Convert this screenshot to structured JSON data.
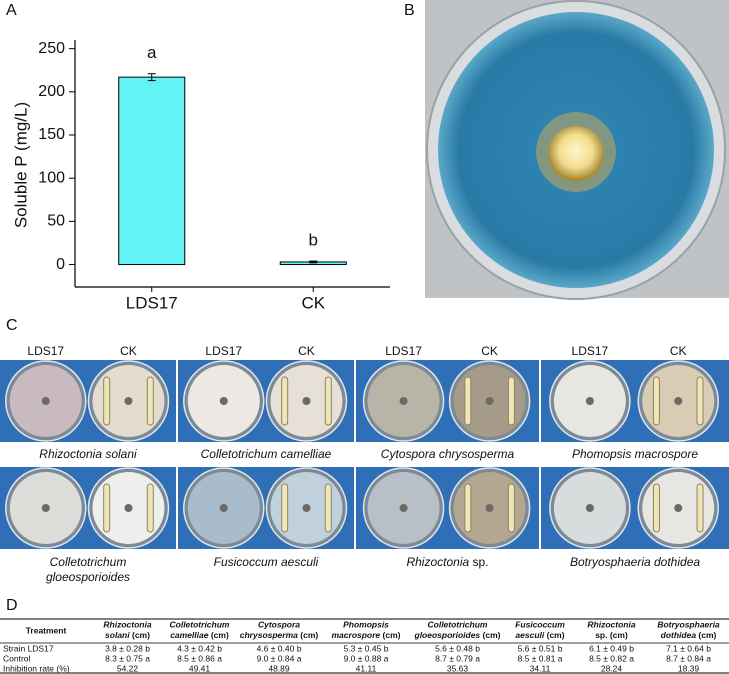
{
  "panels": [
    "A",
    "B",
    "C",
    "D"
  ],
  "chart_data": {
    "type": "bar",
    "ylabel": "Soluble P (mg/L)",
    "categories": [
      "LDS17",
      "CK"
    ],
    "values": [
      217,
      3
    ],
    "errors": [
      4,
      1
    ],
    "annotations": [
      "a",
      "b"
    ],
    "color": "#62f4f4",
    "ylim": [
      -26,
      260
    ],
    "yticks": [
      0,
      50,
      100,
      150,
      200,
      250
    ]
  },
  "panel_c": {
    "rows": [
      [
        {
          "columns": [
            "LDS17",
            "CK"
          ],
          "name": "Rhizoctonia solani"
        },
        {
          "columns": [
            "LDS17",
            "CK"
          ],
          "name": "Colletotrichum camelliae"
        },
        {
          "columns": [
            "LDS17",
            "CK"
          ],
          "name": "Cytospora chrysosperma"
        },
        {
          "columns": [
            "LDS17",
            "CK"
          ],
          "name": "Phomopsis macrospore"
        }
      ],
      [
        {
          "name": "Colletotrichum",
          "name2": "gloeosporioides"
        },
        {
          "name": "Fusicoccum aesculi"
        },
        {
          "name": "Rhizoctonia",
          "suffix": "sp."
        },
        {
          "name": "Botryosphaeria dothidea"
        }
      ]
    ]
  },
  "table": {
    "header": [
      {
        "text": "Treatment"
      },
      {
        "italic": "Rhizoctonia",
        "italic2": "solani",
        "text": "(cm)"
      },
      {
        "italic": "Colletotrichum",
        "italic2": "camelliae",
        "text": "(cm)"
      },
      {
        "italic": "Cytospora",
        "italic2": "chrysosperma",
        "text": "(cm)"
      },
      {
        "italic": "Phomopsis",
        "italic2": "macrospore",
        "text": "(cm)"
      },
      {
        "italic": "Colletotrichum",
        "italic2": "gloeosporioides",
        "text": "(cm)"
      },
      {
        "italic": "Fusicoccum",
        "italic2": "aesculi",
        "text": "(cm)"
      },
      {
        "italic": "Rhizoctonia",
        "text2": "sp. (cm)"
      },
      {
        "italic": "Botryosphaeria",
        "italic2": "dothidea",
        "text": "(cm)"
      }
    ],
    "rows": [
      [
        "Strain LDS17",
        "3.8 ± 0.28 b",
        "4.3 ± 0.42 b",
        "4.6 ± 0.40 b",
        "5.3 ± 0.45 b",
        "5.6 ± 0.48 b",
        "5.6 ± 0.51 b",
        "6.1 ± 0.49 b",
        "7.1 ± 0.64 b"
      ],
      [
        "Control",
        "8.3 ± 0.75 a",
        "8.5 ± 0.86 a",
        "9.0 ± 0.84 a",
        "9.0 ± 0.88 a",
        "8.7 ± 0.79 a",
        "8.5 ± 0.81 a",
        "8.5 ± 0.82 a",
        "8.7 ± 0.84 a"
      ],
      [
        "Inhibition rate (%)",
        "54.22",
        "49.41",
        "48.89",
        "41.11",
        "35.63",
        "34.11",
        "28.24",
        "18.39"
      ]
    ]
  }
}
